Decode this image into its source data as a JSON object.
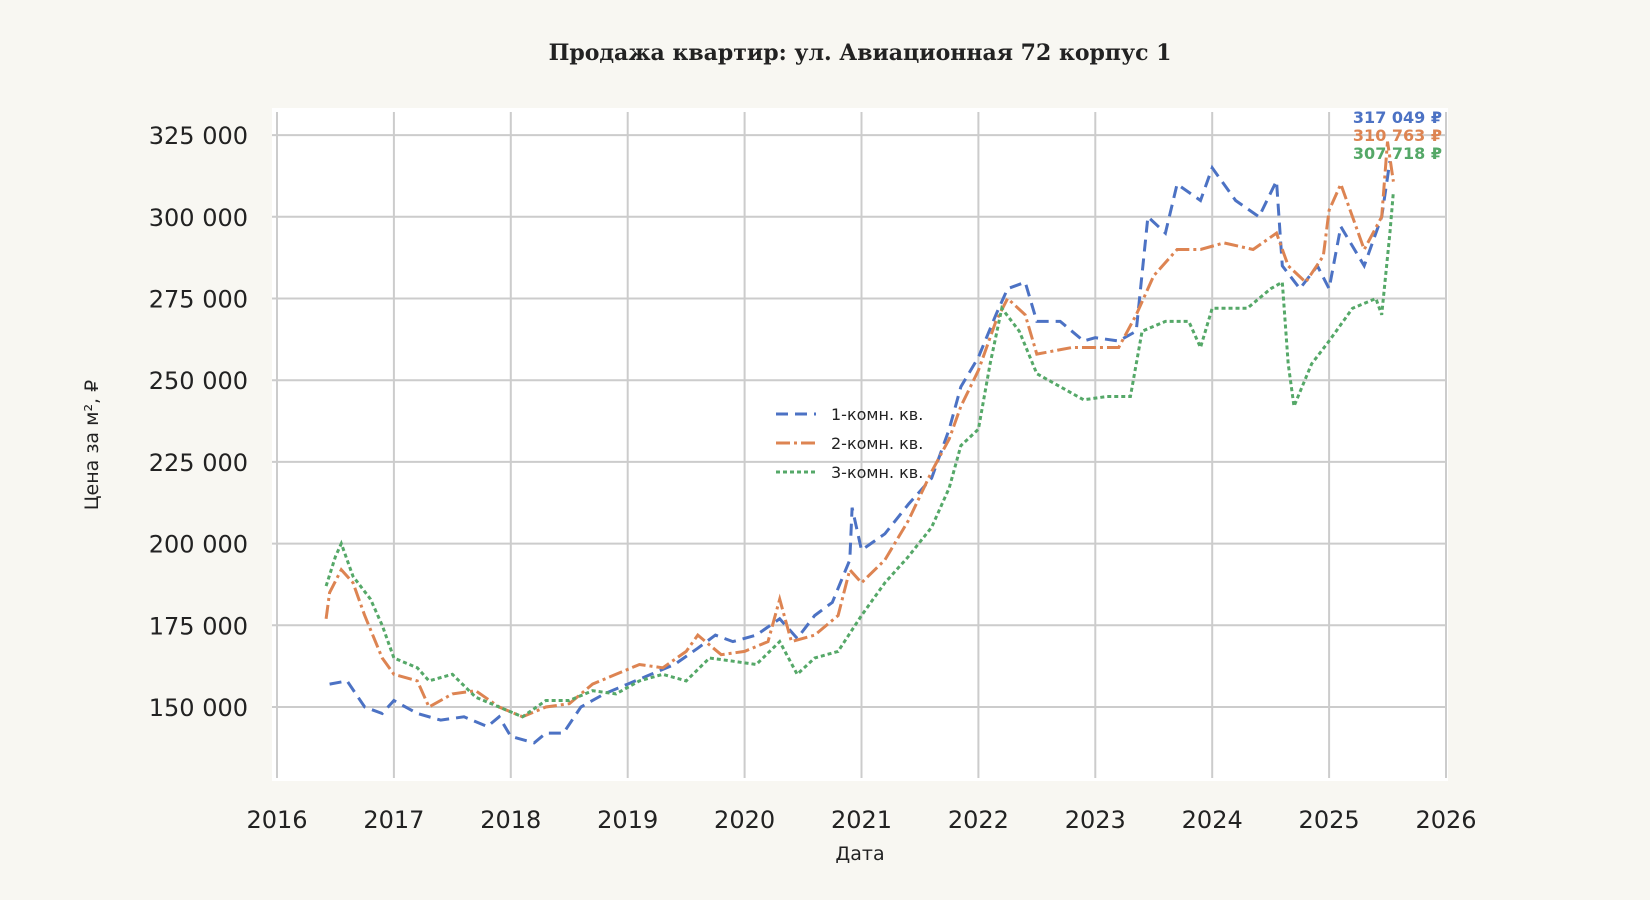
{
  "chart_data": {
    "type": "line",
    "title": "Продажа квартир: ул. Авиационная 72 корпус 1",
    "xlabel": "Дата",
    "ylabel": "Цена за м², ₽",
    "xlim": [
      2016,
      2026
    ],
    "ylim": [
      130000,
      333000
    ],
    "x_ticks": [
      "2016",
      "2017",
      "2018",
      "2019",
      "2020",
      "2021",
      "2022",
      "2023",
      "2024",
      "2025",
      "2026"
    ],
    "y_ticks": [
      {
        "value": 150000,
        "label": "150 000"
      },
      {
        "value": 175000,
        "label": "175 000"
      },
      {
        "value": 200000,
        "label": "200 000"
      },
      {
        "value": 225000,
        "label": "225 000"
      },
      {
        "value": 250000,
        "label": "250 000"
      },
      {
        "value": 275000,
        "label": "275 000"
      },
      {
        "value": 300000,
        "label": "300 000"
      },
      {
        "value": 325000,
        "label": "325 000"
      }
    ],
    "grid": true,
    "legend_placement": "center",
    "series": [
      {
        "name": "1-комн. кв.",
        "color": "#4c72c4",
        "style": "dashed",
        "last_label": "317 049 ₽",
        "x": [
          2016.45,
          2016.6,
          2016.75,
          2016.9,
          2017.0,
          2017.2,
          2017.4,
          2017.6,
          2017.8,
          2017.9,
          2018.0,
          2018.2,
          2018.3,
          2018.45,
          2018.6,
          2018.8,
          2019.0,
          2019.2,
          2019.4,
          2019.6,
          2019.75,
          2019.9,
          2020.1,
          2020.3,
          2020.45,
          2020.6,
          2020.75,
          2020.9,
          2020.92,
          2021.0,
          2021.2,
          2021.4,
          2021.6,
          2021.75,
          2021.85,
          2022.0,
          2022.15,
          2022.25,
          2022.4,
          2022.5,
          2022.7,
          2022.9,
          2023.0,
          2023.2,
          2023.35,
          2023.45,
          2023.6,
          2023.7,
          2023.9,
          2024.0,
          2024.2,
          2024.4,
          2024.55,
          2024.6,
          2024.75,
          2024.9,
          2025.0,
          2025.1,
          2025.3,
          2025.45,
          2025.52
        ],
        "y": [
          157000,
          158000,
          150000,
          148000,
          152000,
          148000,
          146000,
          147000,
          144000,
          147000,
          141000,
          139000,
          142000,
          142000,
          150000,
          154000,
          157000,
          160000,
          163000,
          168000,
          172000,
          170000,
          172000,
          177000,
          171000,
          178000,
          182000,
          195000,
          211000,
          198000,
          203000,
          212000,
          220000,
          235000,
          248000,
          257000,
          270000,
          278000,
          280000,
          268000,
          268000,
          262000,
          263000,
          262000,
          265000,
          300000,
          295000,
          310000,
          305000,
          315000,
          305000,
          300000,
          311000,
          285000,
          278000,
          285000,
          278000,
          297000,
          285000,
          300000,
          317049
        ]
      },
      {
        "name": "2-комн. кв.",
        "color": "#dd8452",
        "style": "dash-dot-marker",
        "last_label": "310 763 ₽",
        "x": [
          2016.42,
          2016.45,
          2016.55,
          2016.65,
          2016.75,
          2016.9,
          2017.0,
          2017.2,
          2017.3,
          2017.5,
          2017.7,
          2017.9,
          2018.1,
          2018.3,
          2018.5,
          2018.7,
          2018.9,
          2019.1,
          2019.3,
          2019.5,
          2019.6,
          2019.8,
          2020.0,
          2020.2,
          2020.3,
          2020.4,
          2020.6,
          2020.8,
          2020.9,
          2021.0,
          2021.2,
          2021.4,
          2021.6,
          2021.75,
          2021.85,
          2022.0,
          2022.15,
          2022.25,
          2022.4,
          2022.5,
          2022.8,
          2023.0,
          2023.2,
          2023.35,
          2023.5,
          2023.7,
          2023.9,
          2024.1,
          2024.35,
          2024.55,
          2024.65,
          2024.8,
          2024.95,
          2025.0,
          2025.1,
          2025.3,
          2025.45,
          2025.5,
          2025.55
        ],
        "y": [
          177000,
          185000,
          192000,
          188000,
          178000,
          165000,
          160000,
          158000,
          150000,
          154000,
          155000,
          150000,
          147000,
          150000,
          151000,
          157000,
          160000,
          163000,
          162000,
          167000,
          172000,
          166000,
          167000,
          170000,
          183000,
          170000,
          172000,
          178000,
          192000,
          188000,
          195000,
          207000,
          222000,
          232000,
          242000,
          253000,
          268000,
          275000,
          270000,
          258000,
          260000,
          260000,
          260000,
          270000,
          282000,
          290000,
          290000,
          292000,
          290000,
          295000,
          285000,
          280000,
          288000,
          302000,
          310000,
          290000,
          300000,
          323000,
          310763
        ]
      },
      {
        "name": "3-комн. кв.",
        "color": "#55a868",
        "style": "dotted-marker",
        "last_label": "307 718 ₽",
        "x": [
          2016.42,
          2016.5,
          2016.55,
          2016.65,
          2016.8,
          2016.9,
          2017.0,
          2017.2,
          2017.3,
          2017.5,
          2017.7,
          2017.9,
          2018.1,
          2018.3,
          2018.5,
          2018.7,
          2018.9,
          2019.1,
          2019.3,
          2019.5,
          2019.7,
          2019.9,
          2020.1,
          2020.3,
          2020.45,
          2020.6,
          2020.8,
          2021.0,
          2021.2,
          2021.4,
          2021.6,
          2021.75,
          2021.85,
          2022.0,
          2022.1,
          2022.2,
          2022.35,
          2022.5,
          2022.7,
          2022.9,
          2023.1,
          2023.3,
          2023.4,
          2023.6,
          2023.8,
          2023.9,
          2024.0,
          2024.3,
          2024.5,
          2024.6,
          2024.65,
          2024.7,
          2024.85,
          2025.0,
          2025.2,
          2025.4,
          2025.45,
          2025.52,
          2025.55
        ],
        "y": [
          187000,
          196000,
          200000,
          190000,
          183000,
          175000,
          165000,
          162000,
          158000,
          160000,
          153000,
          150000,
          147000,
          152000,
          152000,
          155000,
          154000,
          158000,
          160000,
          158000,
          165000,
          164000,
          163000,
          170000,
          160000,
          165000,
          167000,
          178000,
          188000,
          196000,
          205000,
          217000,
          230000,
          235000,
          255000,
          272000,
          265000,
          252000,
          248000,
          244000,
          245000,
          245000,
          265000,
          268000,
          268000,
          260000,
          272000,
          272000,
          278000,
          280000,
          255000,
          242000,
          255000,
          262000,
          272000,
          275000,
          270000,
          295000,
          307718
        ]
      }
    ]
  }
}
